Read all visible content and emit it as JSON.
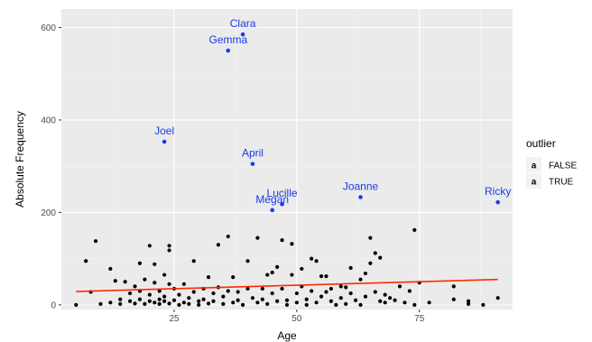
{
  "chart_data": {
    "type": "scatter",
    "title": "",
    "xlabel": "Age",
    "ylabel": "Absolute Frequency",
    "xlim": [
      2,
      94
    ],
    "ylim": [
      -10,
      640
    ],
    "x_ticks": [
      25,
      50,
      75
    ],
    "y_ticks": [
      0,
      200,
      400,
      600
    ],
    "grid": true,
    "legend": {
      "title": "outlier",
      "placement": "right",
      "entries": [
        {
          "label": "FALSE",
          "color": "#000000",
          "glyph": "a"
        },
        {
          "label": "TRUE",
          "color": "#1a3ae8",
          "glyph": "a"
        }
      ]
    },
    "colors": {
      "panel": "#ebebeb",
      "grid_major": "#ffffff",
      "grid_minor": "#f4f4f4",
      "normal": "#000000",
      "outlier": "#1a3ae8",
      "trend": "#ff2a00"
    },
    "trend_line": {
      "color": "#ff2a00",
      "x": [
        5,
        91
      ],
      "y": [
        29,
        55
      ]
    },
    "outliers": [
      {
        "name": "Clara",
        "x": 39,
        "y": 585
      },
      {
        "name": "Gemma",
        "x": 36,
        "y": 550
      },
      {
        "name": "Joel",
        "x": 23,
        "y": 353
      },
      {
        "name": "April",
        "x": 41,
        "y": 305
      },
      {
        "name": "Lucille",
        "x": 47,
        "y": 218
      },
      {
        "name": "Megan",
        "x": 45,
        "y": 205
      },
      {
        "name": "Joanne",
        "x": 63,
        "y": 233
      },
      {
        "name": "Ricky",
        "x": 91,
        "y": 222
      }
    ],
    "points": [
      [
        5,
        0
      ],
      [
        7,
        95
      ],
      [
        8,
        28
      ],
      [
        9,
        138
      ],
      [
        10,
        2
      ],
      [
        12,
        78
      ],
      [
        12,
        5
      ],
      [
        13,
        52
      ],
      [
        14,
        12
      ],
      [
        14,
        2
      ],
      [
        15,
        50
      ],
      [
        16,
        25
      ],
      [
        16,
        8
      ],
      [
        17,
        40
      ],
      [
        17,
        3
      ],
      [
        18,
        90
      ],
      [
        18,
        30
      ],
      [
        18,
        12
      ],
      [
        19,
        2
      ],
      [
        19,
        55
      ],
      [
        20,
        128
      ],
      [
        20,
        22
      ],
      [
        20,
        8
      ],
      [
        21,
        88
      ],
      [
        21,
        48
      ],
      [
        21,
        5
      ],
      [
        22,
        12
      ],
      [
        22,
        30
      ],
      [
        22,
        2
      ],
      [
        23,
        65
      ],
      [
        23,
        18
      ],
      [
        23,
        8
      ],
      [
        24,
        128
      ],
      [
        24,
        118
      ],
      [
        24,
        45
      ],
      [
        24,
        3
      ],
      [
        25,
        35
      ],
      [
        25,
        10
      ],
      [
        26,
        22
      ],
      [
        26,
        0
      ],
      [
        27,
        45
      ],
      [
        27,
        5
      ],
      [
        28,
        15
      ],
      [
        28,
        2
      ],
      [
        29,
        95
      ],
      [
        29,
        28
      ],
      [
        30,
        8
      ],
      [
        30,
        0
      ],
      [
        31,
        35
      ],
      [
        31,
        12
      ],
      [
        32,
        60
      ],
      [
        32,
        3
      ],
      [
        33,
        25
      ],
      [
        33,
        8
      ],
      [
        34,
        130
      ],
      [
        34,
        38
      ],
      [
        35,
        2
      ],
      [
        35,
        18
      ],
      [
        36,
        148
      ],
      [
        36,
        30
      ],
      [
        37,
        60
      ],
      [
        37,
        5
      ],
      [
        38,
        10
      ],
      [
        38,
        28
      ],
      [
        39,
        0
      ],
      [
        40,
        95
      ],
      [
        40,
        35
      ],
      [
        41,
        15
      ],
      [
        42,
        145
      ],
      [
        42,
        5
      ],
      [
        43,
        35
      ],
      [
        43,
        12
      ],
      [
        44,
        65
      ],
      [
        44,
        2
      ],
      [
        45,
        70
      ],
      [
        45,
        25
      ],
      [
        46,
        8
      ],
      [
        46,
        82
      ],
      [
        47,
        140
      ],
      [
        47,
        35
      ],
      [
        48,
        10
      ],
      [
        48,
        0
      ],
      [
        49,
        132
      ],
      [
        49,
        65
      ],
      [
        50,
        25
      ],
      [
        50,
        5
      ],
      [
        51,
        78
      ],
      [
        51,
        40
      ],
      [
        52,
        12
      ],
      [
        52,
        0
      ],
      [
        53,
        100
      ],
      [
        53,
        30
      ],
      [
        54,
        95
      ],
      [
        54,
        5
      ],
      [
        55,
        62
      ],
      [
        55,
        18
      ],
      [
        56,
        62
      ],
      [
        56,
        28
      ],
      [
        57,
        8
      ],
      [
        57,
        35
      ],
      [
        58,
        0
      ],
      [
        59,
        40
      ],
      [
        59,
        15
      ],
      [
        60,
        38
      ],
      [
        60,
        2
      ],
      [
        61,
        80
      ],
      [
        61,
        25
      ],
      [
        62,
        10
      ],
      [
        63,
        55
      ],
      [
        63,
        0
      ],
      [
        64,
        68
      ],
      [
        64,
        18
      ],
      [
        65,
        145
      ],
      [
        65,
        90
      ],
      [
        66,
        112
      ],
      [
        66,
        28
      ],
      [
        67,
        102
      ],
      [
        67,
        8
      ],
      [
        68,
        22
      ],
      [
        68,
        5
      ],
      [
        69,
        15
      ],
      [
        70,
        10
      ],
      [
        71,
        40
      ],
      [
        72,
        5
      ],
      [
        73,
        30
      ],
      [
        74,
        162
      ],
      [
        74,
        0
      ],
      [
        75,
        48
      ],
      [
        77,
        5
      ],
      [
        82,
        40
      ],
      [
        82,
        12
      ],
      [
        85,
        8
      ],
      [
        85,
        2
      ],
      [
        88,
        0
      ],
      [
        91,
        15
      ]
    ]
  }
}
